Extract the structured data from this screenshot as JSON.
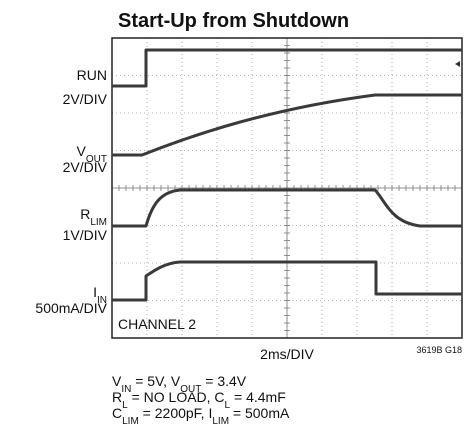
{
  "title": "Start-Up from Shutdown",
  "channels": [
    {
      "name": [
        "RUN"
      ],
      "scale": "2V/DIV"
    },
    {
      "name": [
        "V",
        "OUT"
      ],
      "scale": "2V/DIV"
    },
    {
      "name": [
        "R",
        "LIM"
      ],
      "scale": "1V/DIV"
    },
    {
      "name": [
        "I",
        "IN"
      ],
      "scale": "500mA/DIV"
    }
  ],
  "channel_note": "CHANNEL 2",
  "time_scale": "2ms/DIV",
  "figure_id": "3619B G18",
  "notes": [
    [
      "V",
      "IN",
      " = 5V, V",
      "OUT",
      " = 3.4V"
    ],
    [
      "R",
      "L",
      " = NO LOAD, C",
      "L",
      " = 4.4mF"
    ],
    [
      "C",
      "LIM",
      " = 2200pF, I",
      "LIM",
      " = 500mA"
    ]
  ]
}
